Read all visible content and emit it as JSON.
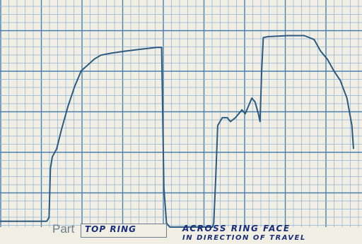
{
  "chart_data": {
    "type": "line",
    "title": "",
    "xlabel": "",
    "ylabel": "",
    "grid": true,
    "colors": {
      "paper": "#f1efe3",
      "minor_grid": "#8fb3d4",
      "major_grid": "#4a7fb0",
      "trace": "#2c5a80",
      "ink": "#1a2d7a",
      "print": "#6b7d8e"
    },
    "xlim": [
      0,
      100
    ],
    "ylim": [
      0,
      100
    ],
    "series": [
      {
        "values": [
          [
            0,
            3
          ],
          [
            6.5,
            3
          ],
          [
            7.2,
            5
          ],
          [
            7.6,
            30
          ],
          [
            8.2,
            36
          ],
          [
            9.5,
            40
          ],
          [
            11,
            50
          ],
          [
            13,
            62
          ],
          [
            15,
            72
          ],
          [
            17,
            80
          ],
          [
            19,
            83
          ],
          [
            21,
            86
          ],
          [
            23,
            88
          ],
          [
            26,
            89
          ],
          [
            30,
            90
          ],
          [
            35,
            91
          ],
          [
            40,
            92
          ],
          [
            41.5,
            92
          ],
          [
            42.2,
            20
          ],
          [
            43,
            2
          ],
          [
            44,
            0
          ],
          [
            57,
            0
          ],
          [
            57.4,
            2
          ],
          [
            58,
            25
          ],
          [
            58.6,
            52
          ],
          [
            60,
            56
          ],
          [
            61.5,
            56
          ],
          [
            62.5,
            54
          ],
          [
            64,
            56
          ],
          [
            66,
            60
          ],
          [
            67,
            58
          ],
          [
            68,
            62
          ],
          [
            69,
            66
          ],
          [
            70,
            64
          ],
          [
            71,
            58
          ],
          [
            71.5,
            54
          ],
          [
            72,
            80
          ],
          [
            72.5,
            97
          ],
          [
            74,
            97.5
          ],
          [
            80,
            98
          ],
          [
            85,
            98
          ],
          [
            88,
            96
          ],
          [
            90,
            90
          ],
          [
            92,
            86
          ],
          [
            94,
            80
          ],
          [
            96,
            75
          ],
          [
            98,
            66
          ],
          [
            99.5,
            52
          ],
          [
            100,
            40
          ]
        ]
      }
    ],
    "annotations": {
      "part_label": "Part",
      "part_value": "TOP RING",
      "note_line1": "ACROSS   RING FACE",
      "note_line2": "IN DIRECTION OF TRAVEL"
    }
  }
}
